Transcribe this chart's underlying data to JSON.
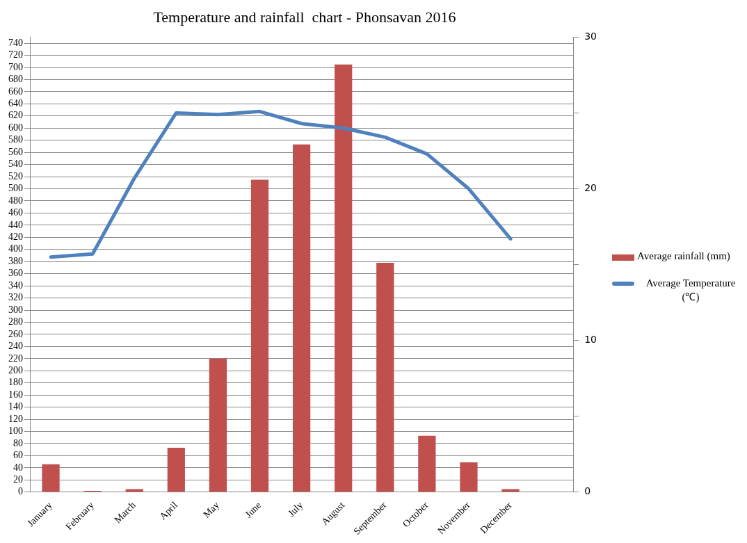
{
  "chart_data": {
    "type": "bar",
    "title": "Temperature and rainfall  chart - Phonsavan 2016",
    "categories": [
      "January",
      "February",
      "March",
      "April",
      "May",
      "June",
      "July",
      "August",
      "September",
      "October",
      "November",
      "December",
      null
    ],
    "series": [
      {
        "name": "Average rainfall (mm)",
        "color": "#c0504d",
        "values": [
          46,
          2,
          5,
          73,
          220,
          515,
          573,
          705,
          378,
          93,
          49,
          5,
          null
        ]
      },
      {
        "name": "Average Temperature (℃)",
        "type": "line",
        "axis": "y2",
        "color": "#4f81bd",
        "marker": "none",
        "values": [
          15.5,
          15.7,
          20.7,
          25.0,
          24.9,
          25.1,
          24.3,
          24.0,
          23.4,
          22.3,
          20.0,
          16.7,
          null
        ]
      }
    ],
    "ylim": [
      0,
      750
    ],
    "yticks": [
      0,
      20,
      40,
      60,
      80,
      100,
      120,
      140,
      160,
      180,
      200,
      220,
      240,
      260,
      280,
      300,
      320,
      340,
      360,
      380,
      400,
      420,
      440,
      460,
      480,
      500,
      520,
      540,
      560,
      580,
      600,
      620,
      640,
      660,
      680,
      700,
      720,
      740
    ],
    "y2lim": [
      0,
      30
    ],
    "y2ticks": [
      0,
      {
        "value": 5,
        "label": null
      },
      10,
      {
        "value": 15,
        "label": null
      },
      20,
      {
        "value": 25,
        "label": null
      },
      30
    ],
    "grid": "y",
    "legend": "right"
  }
}
